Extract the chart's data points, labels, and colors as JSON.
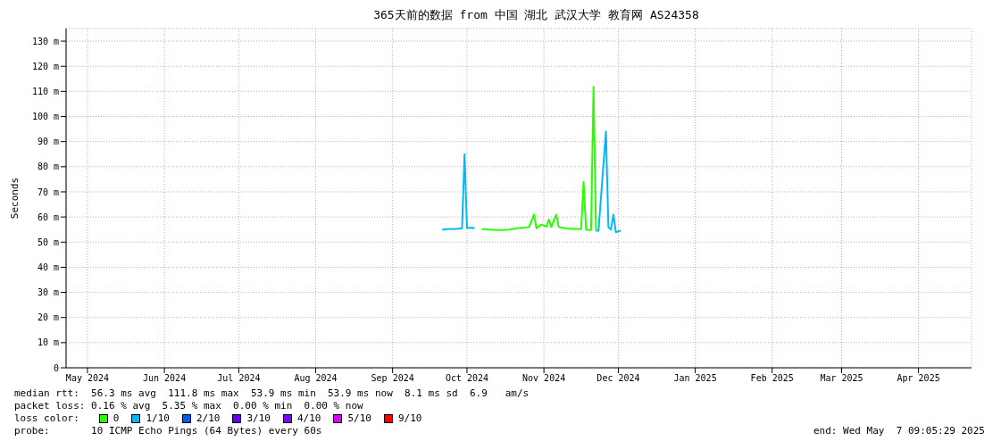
{
  "chart_data": {
    "type": "line",
    "title": "365天前的数据 from 中国 湖北 武汉大学 教育网 AS24358",
    "ylabel": "Seconds",
    "xlim": [
      "2024-05-07T09:05",
      "2025-05-07T09:05"
    ],
    "xticks": [
      {
        "value": "2024-05-16",
        "label": "May 2024"
      },
      {
        "value": "2024-06-16",
        "label": "Jun 2024"
      },
      {
        "value": "2024-07-16",
        "label": "Jul 2024"
      },
      {
        "value": "2024-08-16",
        "label": "Aug 2024"
      },
      {
        "value": "2024-09-16",
        "label": "Sep 2024"
      },
      {
        "value": "2024-10-16",
        "label": "Oct 2024"
      },
      {
        "value": "2024-11-16",
        "label": "Nov 2024"
      },
      {
        "value": "2024-12-16",
        "label": "Dec 2024"
      },
      {
        "value": "2025-01-16",
        "label": "Jan 2025"
      },
      {
        "value": "2025-02-16",
        "label": "Feb 2025"
      },
      {
        "value": "2025-03-16",
        "label": "Mar 2025"
      },
      {
        "value": "2025-04-16",
        "label": "Apr 2025"
      }
    ],
    "ylim": [
      0,
      135
    ],
    "yticks": [
      0,
      {
        "value": 10,
        "label": "10 m"
      },
      {
        "value": 20,
        "label": "20 m"
      },
      {
        "value": 30,
        "label": "30 m"
      },
      {
        "value": 40,
        "label": "40 m"
      },
      {
        "value": 50,
        "label": "50 m"
      },
      {
        "value": 60,
        "label": "60 m"
      },
      {
        "value": 70,
        "label": "70 m"
      },
      {
        "value": 80,
        "label": "80 m"
      },
      {
        "value": 90,
        "label": "90 m"
      },
      {
        "value": 100,
        "label": "100 m"
      },
      {
        "value": 110,
        "label": "110 m"
      },
      {
        "value": 120,
        "label": "120 m"
      },
      {
        "value": 130,
        "label": "130 m"
      }
    ],
    "grid": true,
    "legend": "bottom",
    "legend_title": "loss color:",
    "marker": "none",
    "line_style": "solid",
    "series": [
      {
        "name": "0",
        "color": "#26ff00",
        "x": [
          "2024-10-22",
          "2024-10-25",
          "2024-10-29",
          "2024-11-02",
          "2024-11-05",
          "2024-11-08",
          "2024-11-10",
          "2024-11-12",
          "2024-11-13",
          "2024-11-15",
          "2024-11-17",
          "2024-11-18",
          "2024-11-19",
          "2024-11-21",
          "2024-11-22",
          "2024-11-25",
          "2024-11-28",
          "2024-12-01",
          "2024-12-02",
          "2024-12-03",
          "2024-12-05",
          "2024-12-06",
          "2024-12-07"
        ],
        "values": [
          55.2,
          55,
          54.8,
          55,
          55.5,
          55.8,
          56,
          61,
          55.5,
          57,
          56.2,
          59,
          56,
          61,
          56,
          55.5,
          55.2,
          55.2,
          74,
          55,
          54.8,
          111.8,
          54.5
        ]
      },
      {
        "name": "1/10",
        "color": "#00b8ff",
        "x": [
          "2024-10-06",
          "2024-10-09",
          "2024-10-12",
          "2024-10-14",
          "2024-10-15",
          "2024-10-16",
          "2024-10-18",
          "2024-10-19",
          "2024-10-21",
          "2024-12-07",
          "2024-12-08",
          "2024-12-10",
          "2024-12-11",
          "2024-12-12",
          "2024-12-13",
          "2024-12-14",
          "2024-12-15",
          "2024-12-17"
        ],
        "values": [
          55,
          55.2,
          55.3,
          55.5,
          85,
          55.6,
          55.8,
          55.5,
          null,
          54.5,
          54.5,
          81,
          94,
          56,
          55,
          61,
          54,
          54.5
        ]
      },
      {
        "name": "2/10",
        "color": "#0059ff"
      },
      {
        "name": "3/10",
        "color": "#5e00ff"
      },
      {
        "name": "4/10",
        "color": "#7e00ff"
      },
      {
        "name": "5/10",
        "color": "#dd00ff"
      },
      {
        "name": "9/10",
        "color": "#ff0000"
      }
    ],
    "annotations": [
      "median rtt:  56.3 ms avg  111.8 ms max  53.9 ms min  53.9 ms now  8.1 ms sd  6.9   am/s",
      "packet loss: 0.16 % avg  5.35 % max  0.00 % min  0.00 % now",
      "probe:       10 ICMP Echo Pings (64 Bytes) every 60s",
      "end: Wed May  7 09:05:29 2025"
    ]
  }
}
